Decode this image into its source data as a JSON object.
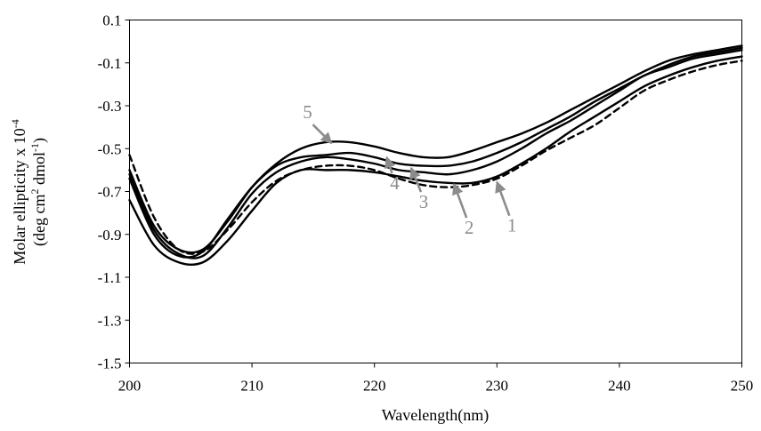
{
  "chart_data": {
    "type": "line",
    "xlabel": "Wavelength(nm)",
    "ylabel_line1": "Molar ellipticity x 10",
    "ylabel_exponent": "-4",
    "ylabel_line2_prefix": "(deg cm",
    "ylabel_line2_exp1": "2",
    "ylabel_line2_mid": " dmol",
    "ylabel_line2_exp2": "-1",
    "ylabel_line2_suffix": ")",
    "xlim": [
      200,
      250
    ],
    "ylim": [
      -1.5,
      0.1
    ],
    "x_ticks": [
      200,
      210,
      220,
      230,
      240,
      250
    ],
    "y_ticks": [
      0.1,
      -0.1,
      -0.3,
      -0.5,
      -0.7,
      -0.9,
      -1.1,
      -1.3,
      -1.5
    ],
    "y_tick_labels": [
      "0.1",
      "-0.1",
      "-0.3",
      "-0.5",
      "-0.7",
      "-0.9",
      "-1.1",
      "-1.3",
      "-1.5"
    ],
    "grid": false,
    "legend": "none",
    "series": [
      {
        "label": "1",
        "style": "solid",
        "x": [
          200,
          202,
          204,
          206,
          208,
          210,
          212,
          214,
          216,
          218,
          220,
          222,
          224,
          226,
          228,
          230,
          232,
          234,
          236,
          238,
          240,
          242,
          244,
          246,
          248,
          250
        ],
        "y": [
          -0.74,
          -0.95,
          -1.03,
          -1.03,
          -0.93,
          -0.79,
          -0.66,
          -0.6,
          -0.6,
          -0.6,
          -0.61,
          -0.63,
          -0.65,
          -0.66,
          -0.66,
          -0.63,
          -0.57,
          -0.5,
          -0.42,
          -0.35,
          -0.28,
          -0.21,
          -0.16,
          -0.12,
          -0.09,
          -0.07
        ]
      },
      {
        "label": "2",
        "style": "dashed",
        "x": [
          200,
          202,
          204,
          206,
          208,
          210,
          212,
          214,
          216,
          218,
          220,
          222,
          224,
          226,
          228,
          230,
          232,
          234,
          236,
          238,
          240,
          242,
          244,
          246,
          248,
          250
        ],
        "y": [
          -0.53,
          -0.82,
          -0.97,
          -0.98,
          -0.88,
          -0.75,
          -0.65,
          -0.6,
          -0.58,
          -0.58,
          -0.6,
          -0.64,
          -0.67,
          -0.68,
          -0.67,
          -0.64,
          -0.58,
          -0.51,
          -0.45,
          -0.39,
          -0.31,
          -0.23,
          -0.18,
          -0.14,
          -0.11,
          -0.09
        ]
      },
      {
        "label": "3",
        "style": "solid",
        "x": [
          200,
          202,
          204,
          206,
          208,
          210,
          212,
          214,
          216,
          218,
          220,
          222,
          224,
          226,
          228,
          230,
          232,
          234,
          236,
          238,
          240,
          242,
          244,
          246,
          248,
          250
        ],
        "y": [
          -0.62,
          -0.88,
          -0.99,
          -1.0,
          -0.87,
          -0.71,
          -0.61,
          -0.56,
          -0.54,
          -0.55,
          -0.57,
          -0.6,
          -0.61,
          -0.62,
          -0.6,
          -0.56,
          -0.5,
          -0.43,
          -0.37,
          -0.3,
          -0.23,
          -0.16,
          -0.12,
          -0.08,
          -0.06,
          -0.04
        ]
      },
      {
        "label": "4",
        "style": "solid",
        "x": [
          200,
          202,
          204,
          206,
          208,
          210,
          212,
          214,
          216,
          218,
          220,
          222,
          224,
          226,
          228,
          230,
          232,
          234,
          236,
          238,
          240,
          242,
          244,
          246,
          248,
          250
        ],
        "y": [
          -0.64,
          -0.9,
          -1.0,
          -0.98,
          -0.83,
          -0.68,
          -0.58,
          -0.54,
          -0.53,
          -0.52,
          -0.54,
          -0.57,
          -0.58,
          -0.58,
          -0.56,
          -0.52,
          -0.47,
          -0.41,
          -0.35,
          -0.28,
          -0.22,
          -0.16,
          -0.11,
          -0.07,
          -0.05,
          -0.03
        ]
      },
      {
        "label": "5",
        "style": "solid",
        "x": [
          200,
          202,
          204,
          206,
          208,
          210,
          212,
          214,
          216,
          218,
          220,
          222,
          224,
          226,
          228,
          230,
          232,
          234,
          236,
          238,
          240,
          242,
          244,
          246,
          248,
          250
        ],
        "y": [
          -0.6,
          -0.86,
          -0.97,
          -0.97,
          -0.84,
          -0.68,
          -0.57,
          -0.5,
          -0.47,
          -0.47,
          -0.49,
          -0.52,
          -0.54,
          -0.54,
          -0.51,
          -0.47,
          -0.43,
          -0.38,
          -0.32,
          -0.26,
          -0.2,
          -0.14,
          -0.09,
          -0.06,
          -0.04,
          -0.02
        ]
      }
    ],
    "annotations": [
      {
        "text": "5",
        "target_x": 216.5,
        "target_y": -0.475
      },
      {
        "text": "4",
        "target_x": 221.0,
        "target_y": -0.54
      },
      {
        "text": "3",
        "target_x": 223.0,
        "target_y": -0.59
      },
      {
        "text": "2",
        "target_x": 226.5,
        "target_y": -0.665
      },
      {
        "text": "1",
        "target_x": 230.0,
        "target_y": -0.655
      }
    ]
  }
}
